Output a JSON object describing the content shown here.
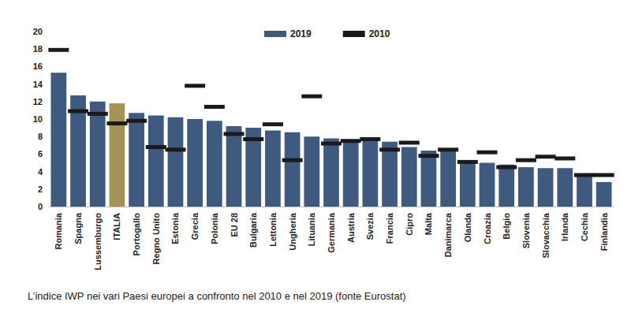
{
  "chart_data": {
    "type": "bar",
    "title": "L’indice IWP nei vari Paesi europei a confronto nel 2010 e nel 2019 (fonte Eurostat)",
    "categories": [
      "Romania",
      "Spagna",
      "Lussemburgo",
      "ITALIA",
      "Portogallo",
      "Regno Unito",
      "Estonia",
      "Grecia",
      "Polonia",
      "EU 28",
      "Bulgaria",
      "Lettonia",
      "Ungheria",
      "Lituania",
      "Germania",
      "Austria",
      "Svezia",
      "Francia",
      "Cipro",
      "Malta",
      "Danimarca",
      "Olanda",
      "Croazia",
      "Belgio",
      "Slovenia",
      "Slovacchia",
      "Irlanda",
      "Cechia",
      "Finlandia"
    ],
    "series": [
      {
        "name": "2019",
        "type": "bar",
        "color": "#3e5a7e",
        "colors": [
          "#3e5a7e",
          "#3e5a7e",
          "#3e5a7e",
          "#a39453",
          "#3e5a7e",
          "#3e5a7e",
          "#3e5a7e",
          "#3e5a7e",
          "#3e5a7e",
          "#3e5a7e",
          "#3e5a7e",
          "#3e5a7e",
          "#3e5a7e",
          "#3e5a7e",
          "#3e5a7e",
          "#3e5a7e",
          "#3e5a7e",
          "#3e5a7e",
          "#3e5a7e",
          "#3e5a7e",
          "#3e5a7e",
          "#3e5a7e",
          "#3e5a7e",
          "#3e5a7e",
          "#3e5a7e",
          "#3e5a7e",
          "#3e5a7e",
          "#3e5a7e",
          "#3e5a7e"
        ],
        "values": [
          15.3,
          12.7,
          12.0,
          11.8,
          10.7,
          10.4,
          10.2,
          10.0,
          9.8,
          9.2,
          9.0,
          8.7,
          8.5,
          8.0,
          7.8,
          7.6,
          7.6,
          7.4,
          6.8,
          6.4,
          6.4,
          5.2,
          5.0,
          4.8,
          4.5,
          4.4,
          4.4,
          3.6,
          2.8
        ]
      },
      {
        "name": "2010",
        "type": "scatter",
        "marker": "dash",
        "color": "#1a1a1a",
        "values": [
          17.9,
          10.9,
          10.6,
          9.5,
          9.8,
          6.8,
          6.5,
          13.8,
          11.4,
          8.3,
          7.7,
          9.4,
          5.3,
          12.6,
          7.2,
          7.5,
          7.7,
          6.5,
          7.3,
          5.8,
          6.5,
          5.1,
          6.2,
          4.5,
          5.3,
          5.7,
          5.5,
          3.6,
          3.6
        ]
      }
    ],
    "ylim": [
      0,
      20
    ],
    "yticks": [
      0,
      2,
      4,
      6,
      8,
      10,
      12,
      14,
      16,
      18,
      20
    ],
    "grid": false,
    "legend": "top"
  }
}
